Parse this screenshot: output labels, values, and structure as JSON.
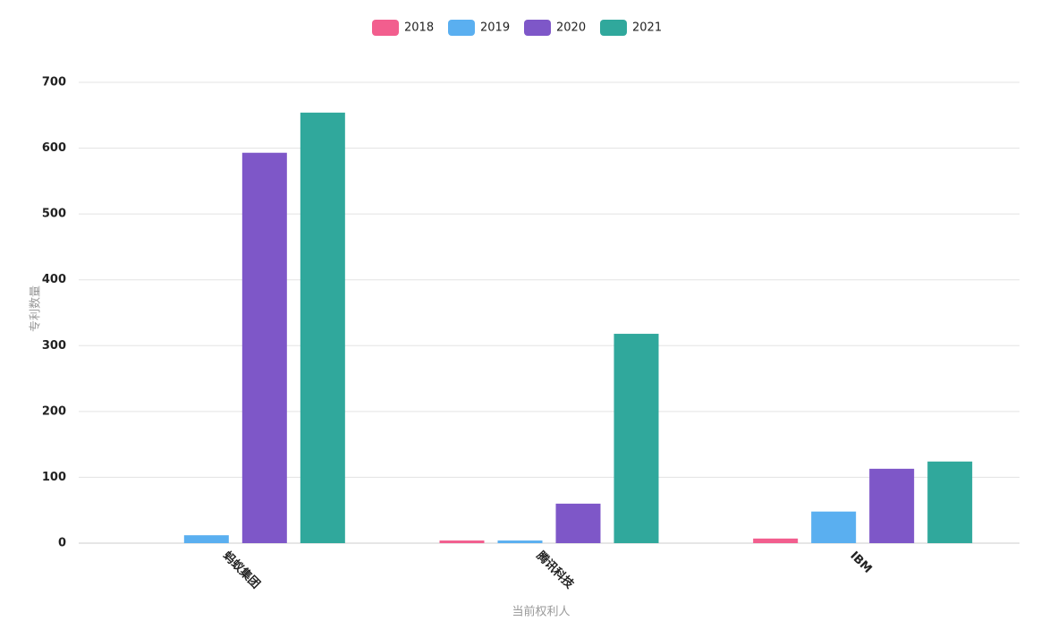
{
  "chart_data": {
    "type": "bar",
    "x_label": "当前权利人",
    "y_label": "专利数量",
    "categories": [
      "蚂蚁集团",
      "腾讯科技",
      "IBM"
    ],
    "series": [
      {
        "name": "2018",
        "color": "#f25e8e",
        "values": [
          0,
          4,
          7
        ]
      },
      {
        "name": "2019",
        "color": "#5aaff0",
        "values": [
          12,
          4,
          48
        ]
      },
      {
        "name": "2020",
        "color": "#7e57c8",
        "values": [
          593,
          60,
          113
        ]
      },
      {
        "name": "2021",
        "color": "#30a89c",
        "values": [
          654,
          318,
          124
        ]
      }
    ],
    "ylim": [
      0,
      700
    ],
    "yticks": [
      0,
      100,
      200,
      300,
      400,
      500,
      600,
      700
    ],
    "grid": true,
    "legend": "top"
  }
}
